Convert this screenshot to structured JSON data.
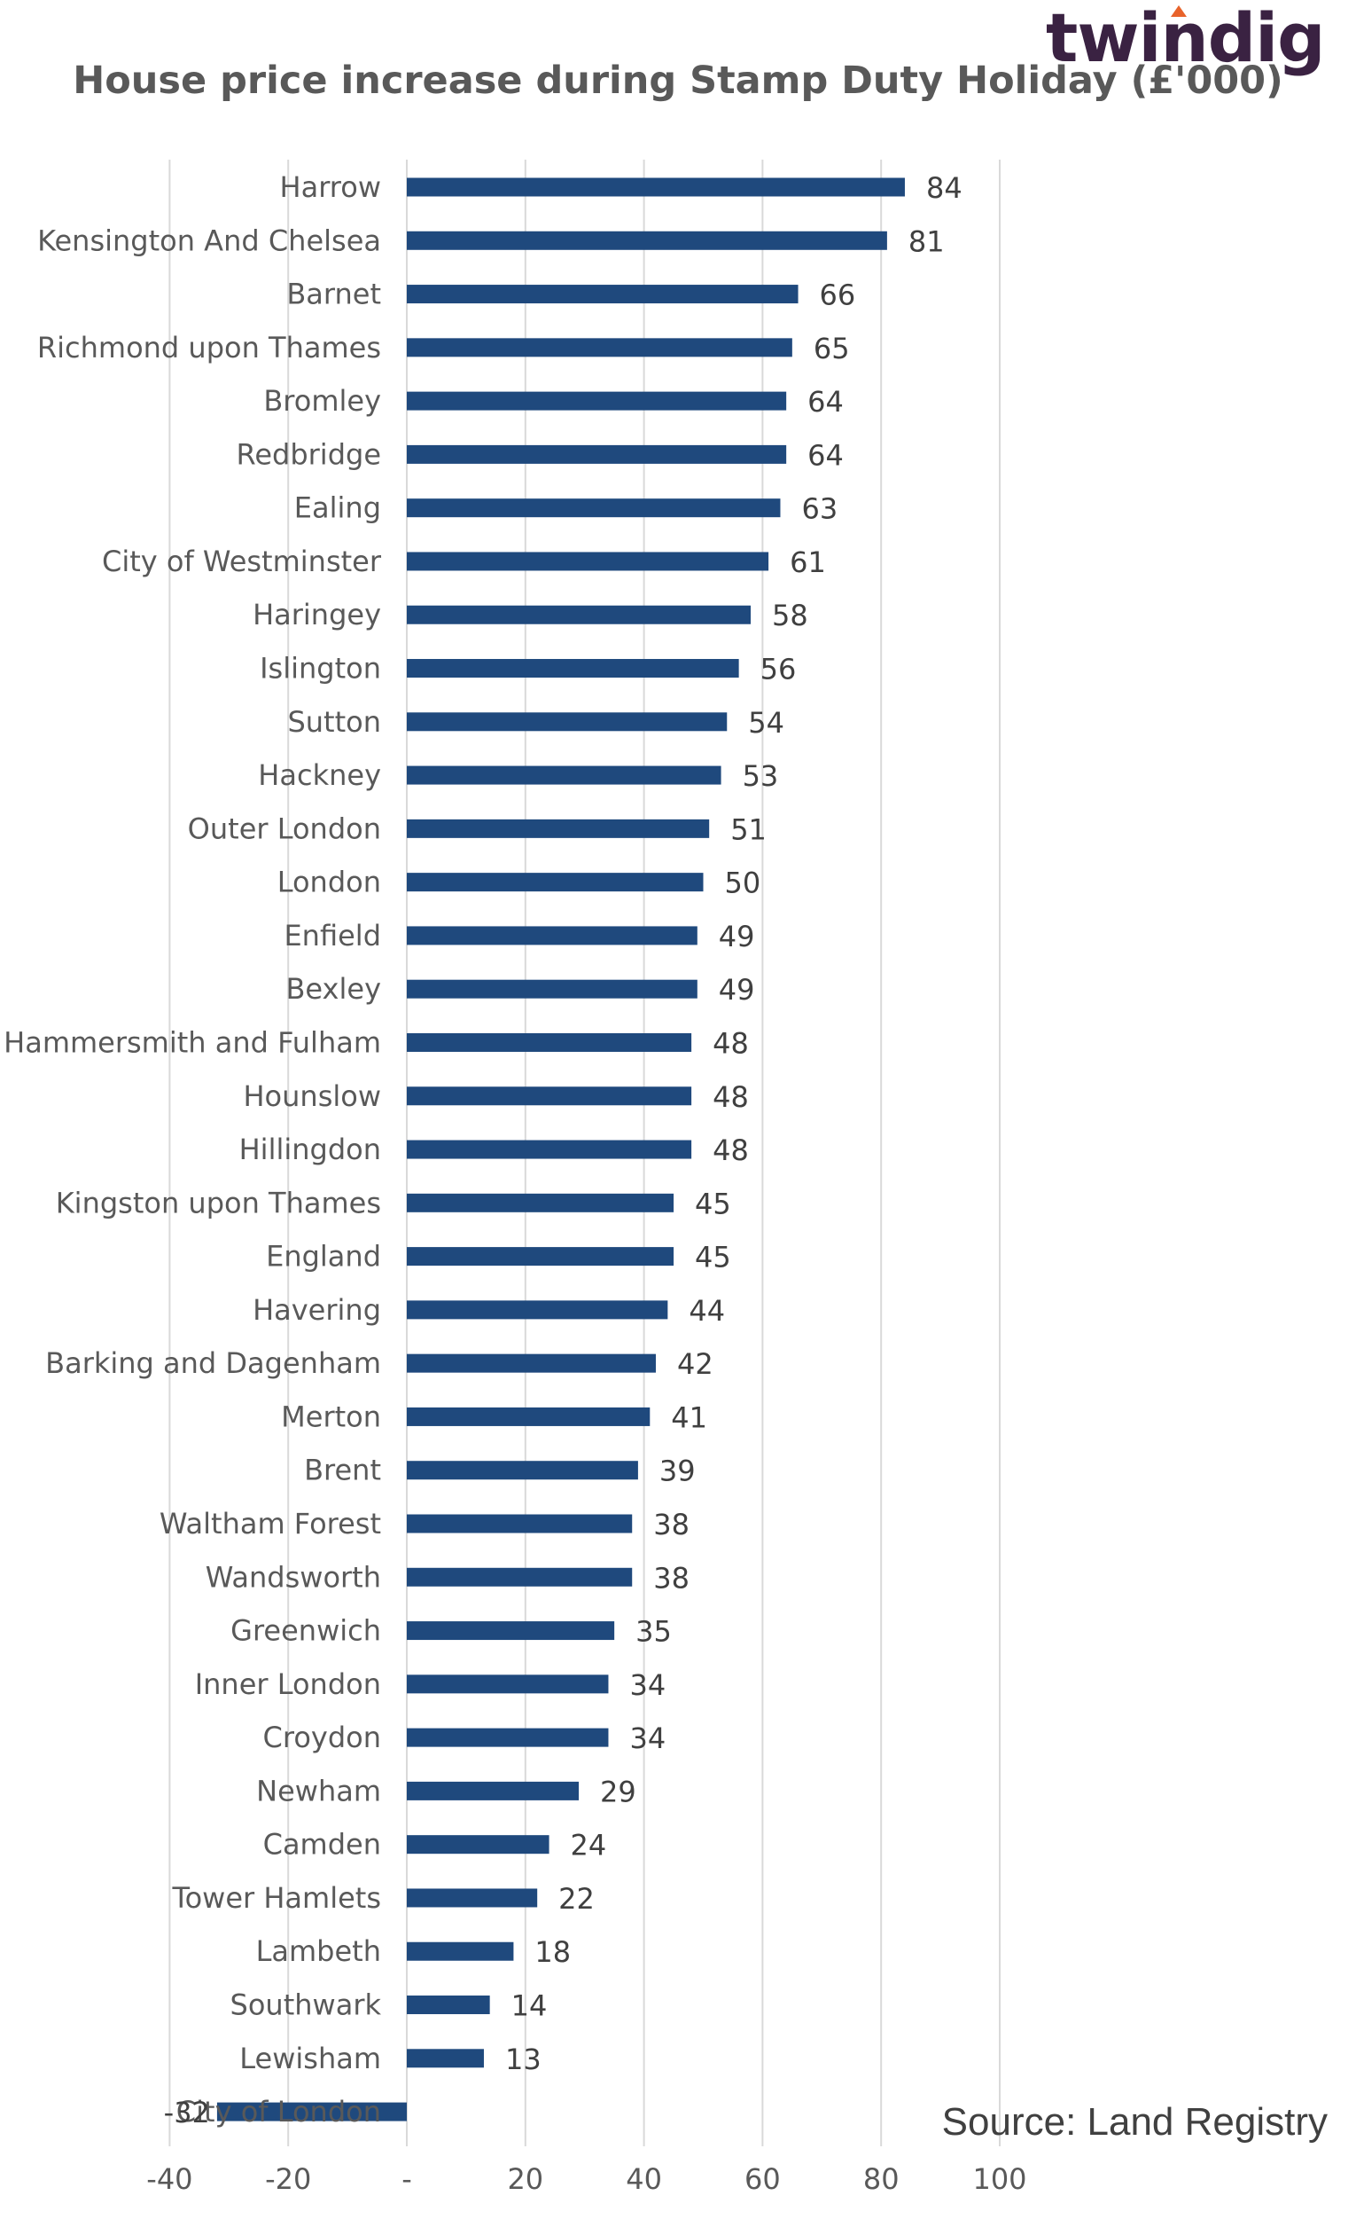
{
  "brand": {
    "name": "twindig"
  },
  "source": "Source: Land Registry",
  "colors": {
    "bar": "#1f497d",
    "grid": "#d9d9d9",
    "text": "#595959",
    "value_text": "#404040",
    "brand_accent": "#e8632b"
  },
  "chart_data": {
    "type": "bar",
    "orientation": "horizontal",
    "title": "House price increase during Stamp Duty Holiday (£'000)",
    "xlabel": "",
    "ylabel": "",
    "xlim": [
      -40,
      100
    ],
    "x_ticks": [
      -40,
      -20,
      0,
      20,
      40,
      60,
      80,
      100
    ],
    "x_tick_labels": [
      "-40",
      "-20",
      "-",
      "20",
      "40",
      "60",
      "80",
      "100"
    ],
    "grid": true,
    "categories": [
      "Harrow",
      "Kensington And Chelsea",
      "Barnet",
      "Richmond upon Thames",
      "Bromley",
      "Redbridge",
      "Ealing",
      "City of Westminster",
      "Haringey",
      "Islington",
      "Sutton",
      "Hackney",
      "Outer London",
      "London",
      "Enfield",
      "Bexley",
      "Hammersmith and Fulham",
      "Hounslow",
      "Hillingdon",
      "Kingston upon Thames",
      "England",
      "Havering",
      "Barking and Dagenham",
      "Merton",
      "Brent",
      "Waltham Forest",
      "Wandsworth",
      "Greenwich",
      "Inner London",
      "Croydon",
      "Newham",
      "Camden",
      "Tower Hamlets",
      "Lambeth",
      "Southwark",
      "Lewisham",
      "City of London"
    ],
    "values": [
      84,
      81,
      66,
      65,
      64,
      64,
      63,
      61,
      58,
      56,
      54,
      53,
      51,
      50,
      49,
      49,
      48,
      48,
      48,
      45,
      45,
      44,
      42,
      41,
      39,
      38,
      38,
      35,
      34,
      34,
      29,
      24,
      22,
      18,
      14,
      13,
      -32
    ]
  }
}
